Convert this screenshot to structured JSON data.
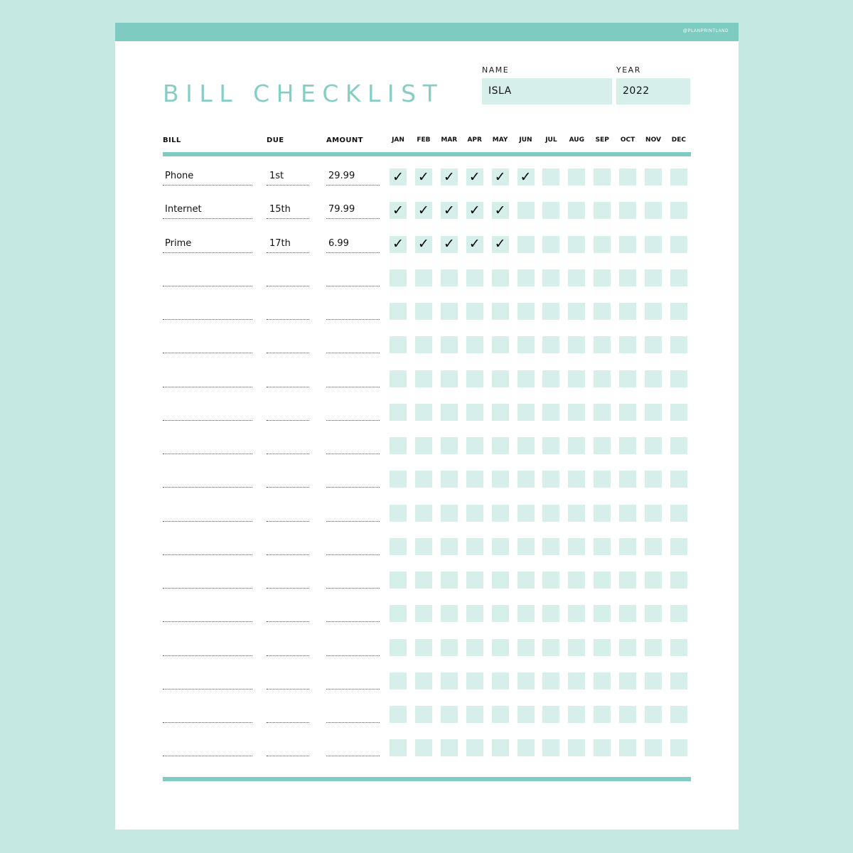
{
  "brand": "@PLANPRINTLAND",
  "title": "BILL CHECKLIST",
  "name_field": {
    "label": "NAME",
    "value": "ISLA"
  },
  "year_field": {
    "label": "YEAR",
    "value": "2022"
  },
  "columns": {
    "bill": "BILL",
    "due": "DUE",
    "amount": "AMOUNT"
  },
  "months": [
    "JAN",
    "FEB",
    "MAR",
    "APR",
    "MAY",
    "JUN",
    "JUL",
    "AUG",
    "SEP",
    "OCT",
    "NOV",
    "DEC"
  ],
  "check_symbol": "✓",
  "rows": [
    {
      "bill": "Phone",
      "due": "1st",
      "amount": "29.99",
      "paid": [
        true,
        true,
        true,
        true,
        true,
        true,
        false,
        false,
        false,
        false,
        false,
        false
      ]
    },
    {
      "bill": "Internet",
      "due": "15th",
      "amount": "79.99",
      "paid": [
        true,
        true,
        true,
        true,
        true,
        false,
        false,
        false,
        false,
        false,
        false,
        false
      ]
    },
    {
      "bill": "Prime",
      "due": "17th",
      "amount": "6.99",
      "paid": [
        true,
        true,
        true,
        true,
        true,
        false,
        false,
        false,
        false,
        false,
        false,
        false
      ]
    },
    {
      "bill": "",
      "due": "",
      "amount": "",
      "paid": [
        false,
        false,
        false,
        false,
        false,
        false,
        false,
        false,
        false,
        false,
        false,
        false
      ]
    },
    {
      "bill": "",
      "due": "",
      "amount": "",
      "paid": [
        false,
        false,
        false,
        false,
        false,
        false,
        false,
        false,
        false,
        false,
        false,
        false
      ]
    },
    {
      "bill": "",
      "due": "",
      "amount": "",
      "paid": [
        false,
        false,
        false,
        false,
        false,
        false,
        false,
        false,
        false,
        false,
        false,
        false
      ]
    },
    {
      "bill": "",
      "due": "",
      "amount": "",
      "paid": [
        false,
        false,
        false,
        false,
        false,
        false,
        false,
        false,
        false,
        false,
        false,
        false
      ]
    },
    {
      "bill": "",
      "due": "",
      "amount": "",
      "paid": [
        false,
        false,
        false,
        false,
        false,
        false,
        false,
        false,
        false,
        false,
        false,
        false
      ]
    },
    {
      "bill": "",
      "due": "",
      "amount": "",
      "paid": [
        false,
        false,
        false,
        false,
        false,
        false,
        false,
        false,
        false,
        false,
        false,
        false
      ]
    },
    {
      "bill": "",
      "due": "",
      "amount": "",
      "paid": [
        false,
        false,
        false,
        false,
        false,
        false,
        false,
        false,
        false,
        false,
        false,
        false
      ]
    },
    {
      "bill": "",
      "due": "",
      "amount": "",
      "paid": [
        false,
        false,
        false,
        false,
        false,
        false,
        false,
        false,
        false,
        false,
        false,
        false
      ]
    },
    {
      "bill": "",
      "due": "",
      "amount": "",
      "paid": [
        false,
        false,
        false,
        false,
        false,
        false,
        false,
        false,
        false,
        false,
        false,
        false
      ]
    },
    {
      "bill": "",
      "due": "",
      "amount": "",
      "paid": [
        false,
        false,
        false,
        false,
        false,
        false,
        false,
        false,
        false,
        false,
        false,
        false
      ]
    },
    {
      "bill": "",
      "due": "",
      "amount": "",
      "paid": [
        false,
        false,
        false,
        false,
        false,
        false,
        false,
        false,
        false,
        false,
        false,
        false
      ]
    },
    {
      "bill": "",
      "due": "",
      "amount": "",
      "paid": [
        false,
        false,
        false,
        false,
        false,
        false,
        false,
        false,
        false,
        false,
        false,
        false
      ]
    },
    {
      "bill": "",
      "due": "",
      "amount": "",
      "paid": [
        false,
        false,
        false,
        false,
        false,
        false,
        false,
        false,
        false,
        false,
        false,
        false
      ]
    },
    {
      "bill": "",
      "due": "",
      "amount": "",
      "paid": [
        false,
        false,
        false,
        false,
        false,
        false,
        false,
        false,
        false,
        false,
        false,
        false
      ]
    },
    {
      "bill": "",
      "due": "",
      "amount": "",
      "paid": [
        false,
        false,
        false,
        false,
        false,
        false,
        false,
        false,
        false,
        false,
        false,
        false
      ]
    }
  ],
  "colors": {
    "accent": "#7dcbc1",
    "box": "#d6efea",
    "background": "#c5e8e2",
    "title": "#86cdc4"
  }
}
